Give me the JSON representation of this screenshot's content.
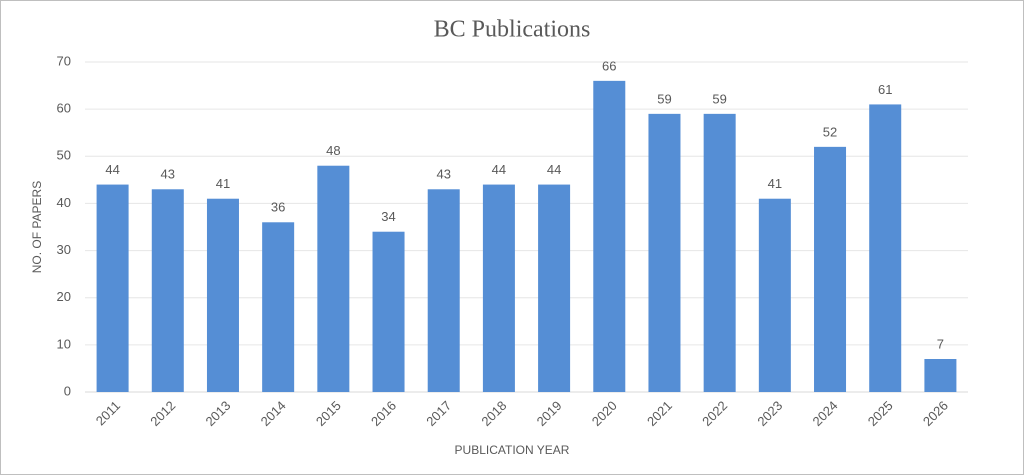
{
  "chart_data": {
    "type": "bar",
    "title": "BC Publications",
    "x_label": "PUBLICATION YEAR",
    "y_label": "NO. OF PAPERS",
    "categories": [
      "2011",
      "2012",
      "2013",
      "2014",
      "2015",
      "2016",
      "2017",
      "2018",
      "2019",
      "2020",
      "2021",
      "2022",
      "2023",
      "2024",
      "2025",
      "2026"
    ],
    "values": [
      44,
      43,
      41,
      36,
      48,
      34,
      43,
      44,
      44,
      66,
      59,
      59,
      41,
      52,
      61,
      7
    ],
    "color": "#558ed5",
    "ylim": [
      0,
      70
    ],
    "yticks": [
      0,
      10,
      20,
      30,
      40,
      50,
      60,
      70
    ],
    "grid": true,
    "data_labels": true
  }
}
